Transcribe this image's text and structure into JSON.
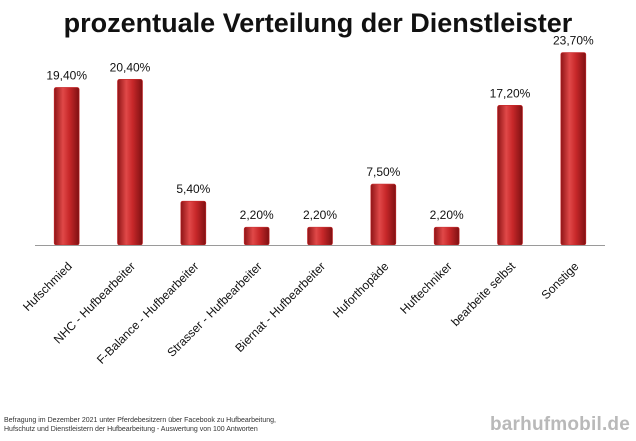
{
  "chart_data": {
    "type": "bar",
    "title": "prozentuale Verteilung der Dienstleister",
    "categories": [
      "Hufschmied",
      "NHC - Hufbearbeiter",
      "F-Balance - Hufbearbeiter",
      "Strasser - Hufbearbeiter",
      "Biernat - Hufbearbeiter",
      "Huforthopäde",
      "Huftechniker",
      "bearbeite selbst",
      "Sonstige"
    ],
    "values": [
      19.4,
      20.4,
      5.4,
      2.2,
      2.2,
      7.5,
      2.2,
      17.2,
      23.7
    ],
    "value_labels": [
      "19,40%",
      "20,40%",
      "5,40%",
      "2,20%",
      "2,20%",
      "7,50%",
      "2,20%",
      "17,20%",
      "23,70%"
    ],
    "ylim": [
      0,
      25
    ],
    "xlabel": "",
    "ylabel": "",
    "bar_color": "#c8282a",
    "grid": false,
    "legend": "none"
  },
  "footnote": {
    "line1": "Befragung im Dezember 2021 unter Pferdebesitzern über Facebook zu Hufbearbeitung,",
    "line2": "Hufschutz und Dienstleistern der Hufbearbeitung - Auswertung von 100 Antworten"
  },
  "watermark": "barhufmobil.de"
}
